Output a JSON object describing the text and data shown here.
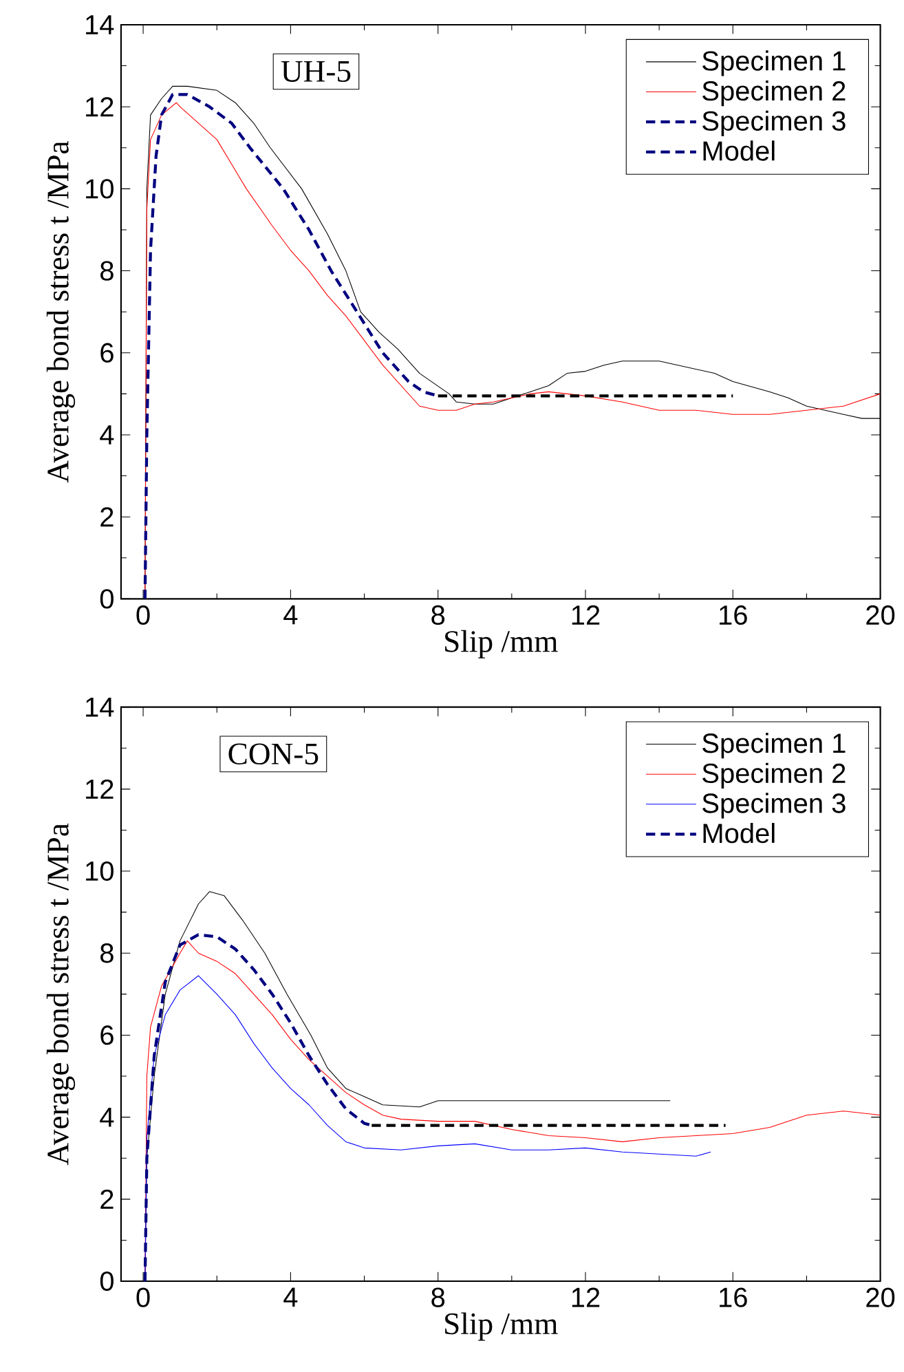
{
  "chart_data": [
    {
      "type": "line",
      "xlabel": "Slip /mm",
      "ylabel": "Average bond stress t /MPa",
      "annotations": [
        "UH-5"
      ],
      "xlim": [
        -0.6,
        20
      ],
      "ylim": [
        0,
        14
      ],
      "xticks": [
        0,
        4,
        8,
        12,
        16,
        20
      ],
      "yticks": [
        0,
        2,
        4,
        6,
        8,
        10,
        12,
        14
      ],
      "grid": false,
      "legend": "top right",
      "marker": "none",
      "series": [
        {
          "name": "Specimen 1",
          "color": "#000000",
          "line_style": "solid",
          "x": [
            0.05,
            0.1,
            0.2,
            0.5,
            0.8,
            1.2,
            2,
            2.5,
            3,
            3.45,
            4.3,
            5,
            5.5,
            5.9,
            6.4,
            6.9,
            7.5,
            8.3,
            8.5,
            9,
            9.5,
            10,
            10.5,
            11,
            11.5,
            12,
            12.5,
            13,
            14,
            14.5,
            15,
            15.5,
            16,
            17,
            17.5,
            18,
            18.5,
            19,
            19.5,
            20
          ],
          "values": [
            0,
            10,
            11.8,
            12.2,
            12.5,
            12.5,
            12.4,
            12.1,
            11.6,
            11,
            10,
            8.9,
            8,
            7,
            6.5,
            6.1,
            5.5,
            5,
            4.8,
            4.75,
            4.75,
            4.9,
            5.05,
            5.2,
            5.5,
            5.55,
            5.7,
            5.8,
            5.8,
            5.7,
            5.6,
            5.5,
            5.3,
            5.05,
            4.9,
            4.7,
            4.6,
            4.5,
            4.4,
            4.4
          ]
        },
        {
          "name": "Specimen 2",
          "color": "#ff0000",
          "line_style": "solid",
          "x": [
            0.05,
            0.1,
            0.2,
            0.5,
            0.9,
            1,
            1.5,
            2,
            2.4,
            2.8,
            3.5,
            4,
            4.5,
            5,
            5.5,
            6,
            6.5,
            7,
            7.5,
            8,
            8.5,
            9,
            9.5,
            10,
            10.5,
            11,
            12,
            13,
            14,
            15,
            16,
            17,
            18,
            19,
            20
          ],
          "values": [
            0,
            9.5,
            11.2,
            11.8,
            12.1,
            12,
            11.6,
            11.2,
            10.6,
            10,
            9.1,
            8.5,
            8,
            7.4,
            6.9,
            6.3,
            5.7,
            5.2,
            4.7,
            4.6,
            4.6,
            4.75,
            4.8,
            4.9,
            5,
            5.05,
            4.95,
            4.8,
            4.6,
            4.6,
            4.5,
            4.5,
            4.6,
            4.7,
            5
          ]
        },
        {
          "name": "Specimen 3",
          "color": "#000080",
          "line_style": "dashed"
        },
        {
          "name": "Model",
          "color": "#000080",
          "line_style": "dashed",
          "x": [
            0.05,
            0.1,
            0.2,
            0.35,
            0.5,
            0.8,
            1.2,
            1.8,
            2.4,
            2.9,
            3.8,
            4.5,
            5.1,
            5.8,
            6.5,
            7.2,
            7.6,
            8
          ],
          "values": [
            0,
            4,
            8.5,
            10.8,
            11.8,
            12.3,
            12.3,
            12,
            11.6,
            11,
            10,
            9,
            8,
            7,
            6,
            5.3,
            5.05,
            4.95
          ]
        },
        {
          "color": "#000000",
          "line_style": "dashed",
          "x": [
            8,
            16
          ],
          "values": [
            4.95,
            4.95
          ]
        }
      ]
    },
    {
      "type": "line",
      "xlabel": "Slip /mm",
      "ylabel": "Average bond stress t /MPa",
      "annotations": [
        "CON-5"
      ],
      "xlim": [
        -0.6,
        20
      ],
      "ylim": [
        0,
        14
      ],
      "xticks": [
        0,
        4,
        8,
        12,
        16,
        20
      ],
      "yticks": [
        0,
        2,
        4,
        6,
        8,
        10,
        12,
        14
      ],
      "grid": false,
      "legend": "top right",
      "marker": "none",
      "series": [
        {
          "name": "Specimen 1",
          "color": "#000000",
          "line_style": "solid",
          "x": [
            0.05,
            0.1,
            0.3,
            0.6,
            1,
            1.5,
            1.8,
            2.2,
            2.7,
            3.3,
            3.9,
            4.55,
            5,
            5.5,
            6,
            6.5,
            7.5,
            8,
            14.3
          ],
          "values": [
            0,
            3,
            5,
            7,
            8.3,
            9.2,
            9.5,
            9.4,
            8.8,
            8,
            7,
            6,
            5.2,
            4.7,
            4.5,
            4.3,
            4.25,
            4.4,
            4.4
          ]
        },
        {
          "name": "Specimen 2",
          "color": "#ff0000",
          "line_style": "solid",
          "x": [
            0.05,
            0.1,
            0.2,
            0.5,
            1,
            1.2,
            1.5,
            2,
            2.5,
            3,
            3.5,
            4,
            4.5,
            5,
            5.5,
            6,
            6.5,
            7,
            8,
            9,
            10,
            11,
            12,
            13,
            14,
            15,
            16,
            17,
            18,
            19,
            20
          ],
          "values": [
            0,
            5,
            6.2,
            7.2,
            8,
            8.3,
            8,
            7.8,
            7.5,
            7,
            6.5,
            5.9,
            5.4,
            5,
            4.6,
            4.3,
            4.05,
            3.95,
            3.9,
            3.9,
            3.7,
            3.55,
            3.5,
            3.4,
            3.5,
            3.55,
            3.6,
            3.75,
            4.05,
            4.15,
            4.05
          ]
        },
        {
          "name": "Specimen 3",
          "color": "#0000ff",
          "line_style": "solid",
          "x": [
            0.05,
            0.1,
            0.3,
            0.6,
            1,
            1.5,
            2,
            2.5,
            3,
            3.5,
            4,
            4.5,
            5,
            5.5,
            6,
            7,
            8,
            9,
            10,
            11,
            12,
            13,
            14,
            15,
            15.4
          ],
          "values": [
            0,
            3.5,
            5.5,
            6.5,
            7.1,
            7.45,
            7,
            6.5,
            5.8,
            5.2,
            4.7,
            4.3,
            3.8,
            3.4,
            3.25,
            3.2,
            3.3,
            3.35,
            3.2,
            3.2,
            3.25,
            3.15,
            3.1,
            3.05,
            3.15
          ]
        },
        {
          "name": "Model",
          "color": "#000080",
          "line_style": "dashed",
          "x": [
            0.05,
            0.1,
            0.3,
            0.6,
            1,
            1.5,
            2,
            2.5,
            3,
            3.5,
            4,
            4.5,
            5,
            5.5,
            6,
            6.2
          ],
          "values": [
            0,
            3,
            5.5,
            7.3,
            8.2,
            8.45,
            8.4,
            8.1,
            7.6,
            7,
            6.3,
            5.5,
            4.8,
            4.2,
            3.85,
            3.8
          ]
        },
        {
          "color": "#000000",
          "line_style": "dashed",
          "x": [
            6.2,
            15.8
          ],
          "values": [
            3.8,
            3.8
          ]
        }
      ]
    }
  ]
}
